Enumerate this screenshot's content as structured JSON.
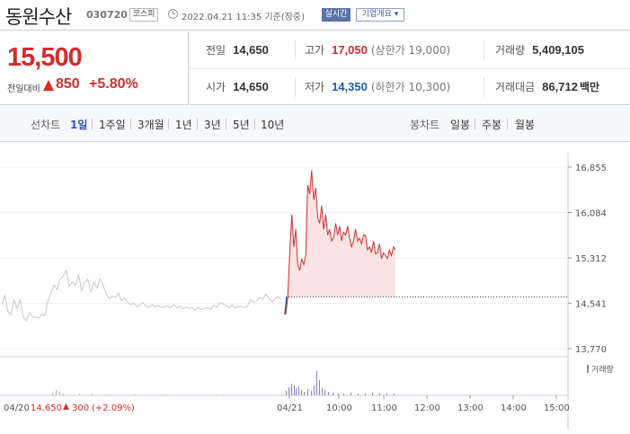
{
  "header": {
    "name": "동원수산",
    "code": "030720",
    "market": "코스피",
    "timestamp": "2022.04.21 11:35 기준(장중)",
    "realtime": "실시간",
    "company_info": "기업개요 ▾"
  },
  "summary": {
    "price": "15,500",
    "change_label": "전일대비",
    "change_value": "850",
    "change_pct": "+5.80%"
  },
  "stats": [
    {
      "label": "전일",
      "value": "14,650"
    },
    {
      "label": "고가",
      "value": "17,050",
      "sub": "(상한가 19,000)"
    },
    {
      "label": "거래량",
      "value": "5,409,105"
    },
    {
      "label": "시가",
      "value": "14,650"
    },
    {
      "label": "저가",
      "value": "14,350",
      "sub": "(하한가 10,300)"
    },
    {
      "label": "거래대금",
      "value": "86,712",
      "unit": "백만"
    }
  ],
  "periods": {
    "line_label": "선차트",
    "line_items": [
      "1일",
      "1주일",
      "3개월",
      "1년",
      "3년",
      "5년",
      "10년"
    ],
    "active": "1일",
    "candle_label": "봉차트",
    "candle_items": [
      "일봉",
      "주봉",
      "월봉"
    ]
  },
  "colors": {
    "up": "#d62b2b",
    "down": "#1b5fb3",
    "accent": "#2d56b4"
  },
  "chart_data": {
    "type": "line",
    "y_ticks": [
      "16,855",
      "16,084",
      "15,312",
      "14,541",
      "13,770"
    ],
    "ylim": [
      13770,
      16855
    ],
    "reference": 14650,
    "time_ticks": [
      "04/21",
      "10:00",
      "11:00",
      "12:00",
      "13:00",
      "14:00",
      "15:00"
    ],
    "volume_legend": "거래량",
    "prev_day_label": "04/20",
    "prev_day_price": "14,650",
    "prev_day_change": "300",
    "prev_day_pct": "(+2.09%)",
    "series": [
      {
        "values": [
          14510,
          14680,
          14400,
          14350,
          14600,
          14450,
          14600,
          14300,
          14250,
          14380,
          14310,
          14300,
          14290,
          14360,
          14330,
          14580,
          14720,
          14850,
          14780,
          14950,
          15000,
          15100,
          14830,
          14900,
          14850,
          15030,
          14760,
          14890,
          14950,
          14730,
          14900,
          14800,
          14950,
          14850,
          14700,
          14620,
          14660,
          14640,
          14710,
          14580,
          14630,
          14560,
          14520,
          14540,
          14480,
          14510,
          14550,
          14490,
          14470,
          14520,
          14480,
          14500,
          14470,
          14480,
          14500,
          14460,
          14520,
          14460,
          14490,
          14440,
          14480,
          14450,
          14470,
          14420,
          14470,
          14430,
          14450,
          14470,
          14440,
          14500,
          14470,
          14550,
          14530,
          14500,
          14460,
          14520,
          14460,
          14490,
          14480,
          14470,
          14490,
          14600,
          14560,
          14580,
          14640,
          14610,
          14700,
          14630,
          14560,
          14620,
          14650,
          14600
        ]
      },
      {
        "values": [
          14350,
          14650,
          15400,
          16050,
          15500,
          15800,
          15200,
          15100,
          15300,
          15200,
          15350,
          16550,
          16400,
          16800,
          16300,
          16500,
          16000,
          15900,
          16200,
          15800,
          16050,
          15700,
          15800,
          15600,
          15650,
          15900,
          15700,
          15850,
          15600,
          15750,
          15700,
          15850,
          15650,
          15500,
          15600,
          15800,
          15600,
          15650,
          15550,
          15700,
          15700,
          15450,
          15500,
          15400,
          15600,
          15380,
          15400,
          15550,
          15300,
          15400,
          15350,
          15300,
          15450,
          15350,
          15500,
          15450
        ]
      }
    ]
  }
}
